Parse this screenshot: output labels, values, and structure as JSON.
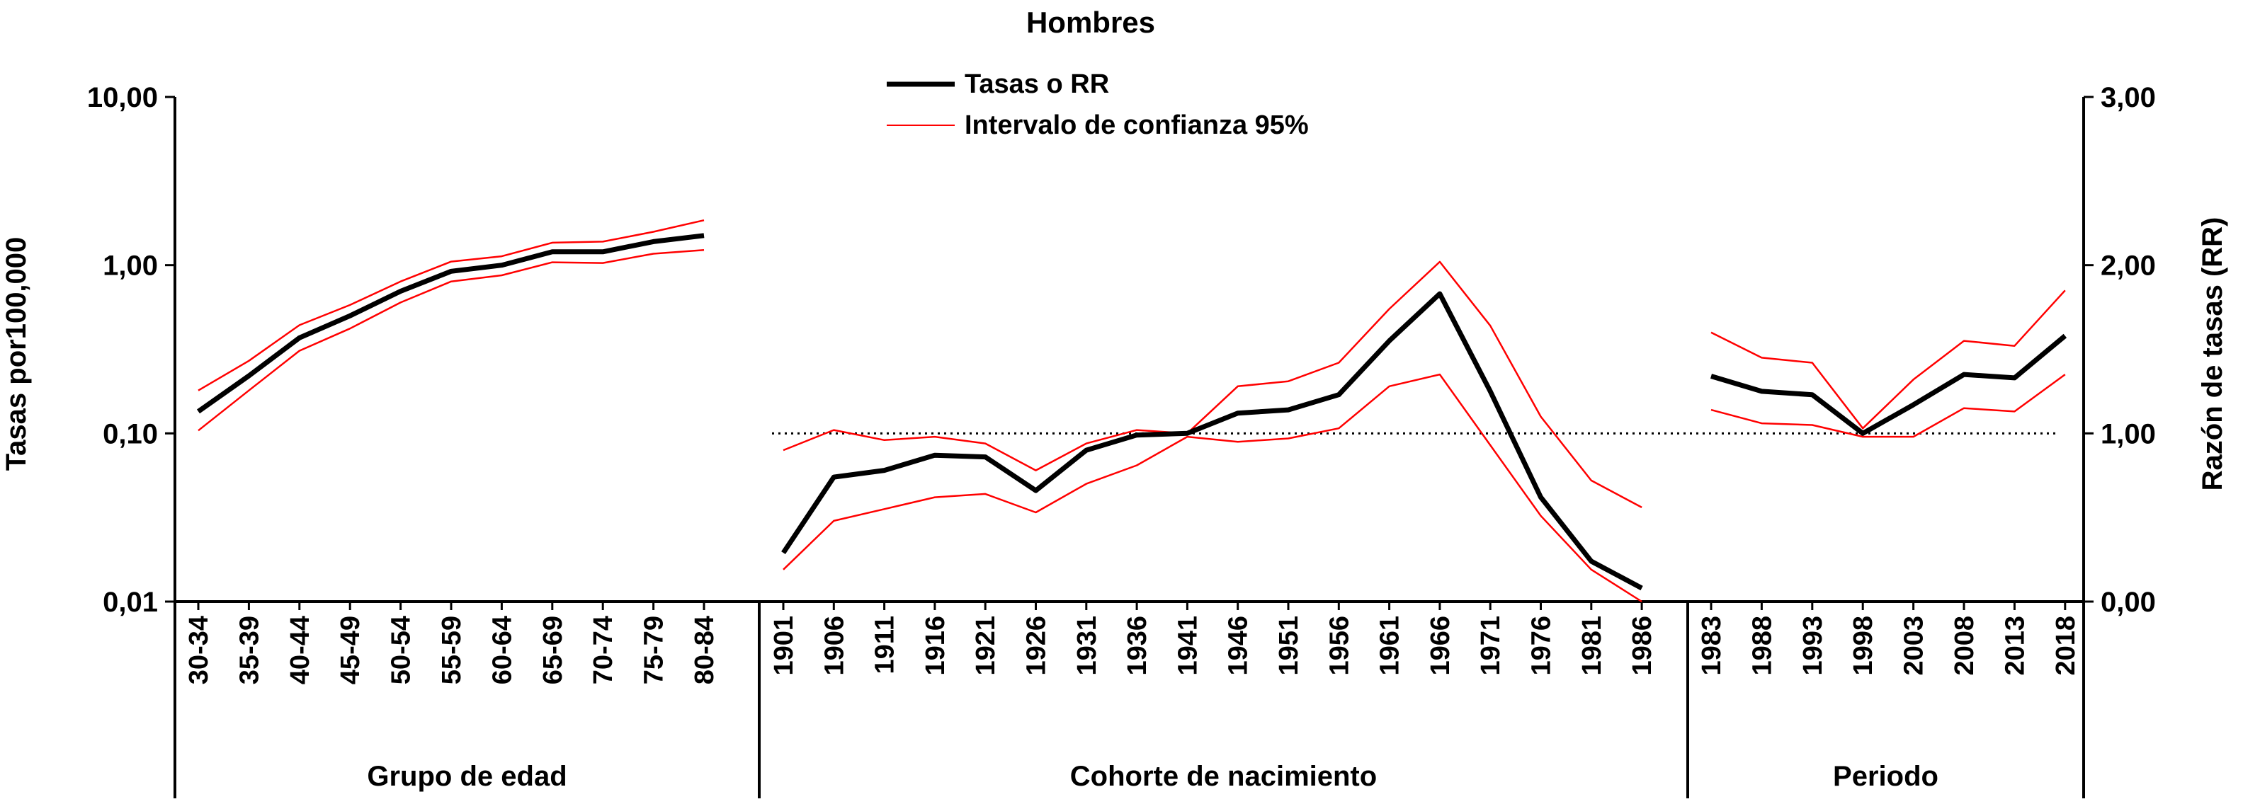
{
  "chart_data": {
    "type": "line",
    "title": "Hombres",
    "legend": {
      "placement": "top-center",
      "items": [
        {
          "label": "Tasas o RR",
          "color": "#000000"
        },
        {
          "label": "Intervalo de confianza 95%",
          "color": "#ff0000"
        }
      ]
    },
    "left_axis": {
      "label": "Tasas por100,000",
      "scale": "log",
      "range": [
        0.01,
        10
      ],
      "ticks": [
        "10,00",
        "1,00",
        "0,10",
        "0,01"
      ]
    },
    "right_axis": {
      "label": "Razón de tasas (RR)",
      "scale": "linear",
      "range": [
        0,
        3
      ],
      "ticks": [
        "3,00",
        "2,00",
        "1,00",
        "0,00"
      ]
    },
    "reference_line": {
      "axis": "right",
      "value": 1.0,
      "style": "dotted"
    },
    "grid": false,
    "panels": [
      {
        "name": "Grupo de edad",
        "axis": "left",
        "categories": [
          "30-34",
          "35-39",
          "40-44",
          "45-49",
          "50-54",
          "55-59",
          "60-64",
          "65-69",
          "70-74",
          "75-79",
          "80-84"
        ],
        "series": [
          {
            "name": "Tasas o RR",
            "values": [
              0.135,
              0.22,
              0.37,
              0.5,
              0.7,
              0.92,
              1.0,
              1.2,
              1.2,
              1.38,
              1.5
            ]
          },
          {
            "name": "Intervalo de confianza 95%",
            "bound": "upper",
            "values": [
              0.18,
              0.27,
              0.44,
              0.58,
              0.8,
              1.05,
              1.13,
              1.36,
              1.38,
              1.58,
              1.85
            ]
          },
          {
            "name": "Intervalo de confianza 95%",
            "bound": "lower",
            "values": [
              0.104,
              0.18,
              0.31,
              0.42,
              0.6,
              0.8,
              0.87,
              1.04,
              1.03,
              1.17,
              1.23
            ]
          }
        ]
      },
      {
        "name": "Cohorte de nacimiento",
        "axis": "right",
        "categories": [
          "1901",
          "1906",
          "1911",
          "1916",
          "1921",
          "1926",
          "1931",
          "1936",
          "1941",
          "1946",
          "1951",
          "1956",
          "1961",
          "1966",
          "1971",
          "1976",
          "1981",
          "1986"
        ],
        "series": [
          {
            "name": "Tasas o RR",
            "values": [
              0.29,
              0.74,
              0.78,
              0.87,
              0.86,
              0.66,
              0.9,
              0.99,
              1.0,
              1.12,
              1.14,
              1.23,
              1.55,
              1.83,
              1.25,
              0.62,
              0.24,
              0.08
            ]
          },
          {
            "name": "Intervalo de confianza 95%",
            "bound": "upper",
            "values": [
              0.9,
              1.02,
              0.96,
              0.98,
              0.94,
              0.78,
              0.94,
              1.02,
              1.0,
              1.28,
              1.31,
              1.42,
              1.74,
              2.02,
              1.64,
              1.1,
              0.72,
              0.56
            ]
          },
          {
            "name": "Intervalo de confianza 95%",
            "bound": "lower",
            "values": [
              0.19,
              0.48,
              0.55,
              0.62,
              0.64,
              0.53,
              0.7,
              0.81,
              0.98,
              0.95,
              0.97,
              1.03,
              1.28,
              1.35,
              0.93,
              0.51,
              0.19,
              0.0
            ]
          }
        ]
      },
      {
        "name": "Periodo",
        "axis": "right",
        "categories": [
          "1983",
          "1988",
          "1993",
          "1998",
          "2003",
          "2008",
          "2013",
          "2018"
        ],
        "series": [
          {
            "name": "Tasas o RR",
            "values": [
              1.34,
              1.25,
              1.23,
              1.0,
              1.17,
              1.35,
              1.33,
              1.58
            ]
          },
          {
            "name": "Intervalo de confianza 95%",
            "bound": "upper",
            "values": [
              1.6,
              1.45,
              1.42,
              1.03,
              1.32,
              1.55,
              1.52,
              1.85
            ]
          },
          {
            "name": "Intervalo de confianza 95%",
            "bound": "lower",
            "values": [
              1.14,
              1.06,
              1.05,
              0.98,
              0.98,
              1.15,
              1.13,
              1.35
            ]
          }
        ]
      }
    ]
  }
}
